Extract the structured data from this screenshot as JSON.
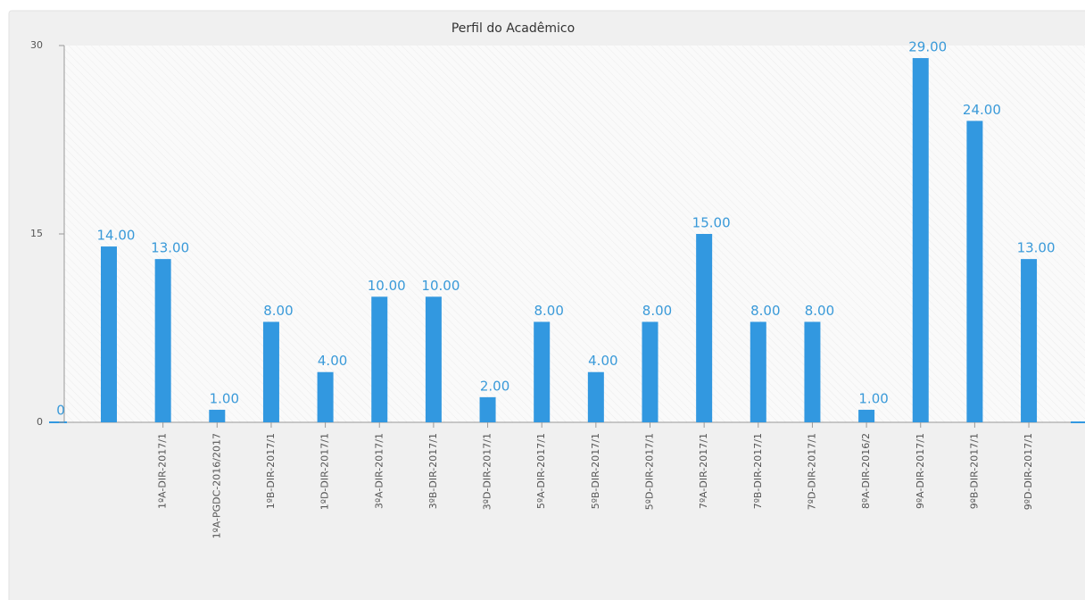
{
  "chart_data": {
    "type": "bar",
    "title": "Perfil do Acadêmico",
    "categories": [
      null,
      "1ºA-DIR-2017/1",
      "1ºA-PGDC-2016/2017",
      "1ºB-DIR-2017/1",
      "1ºD-DIR-2017/1",
      "3ºA-DIR-2017/1",
      "3ºB-DIR-2017/1",
      "3ºD-DIR-2017/1",
      "5ºA-DIR-2017/1",
      "5ºB-DIR-2017/1",
      "5ºD-DIR-2017/1",
      "7ºA-DIR-2017/1",
      "7ºB-DIR-2017/1",
      "7ºD-DIR-2017/1",
      "8ºA-DIR-2016/2",
      "9ºA-DIR-2017/1",
      "9ºB-DIR-2017/1",
      "9ºD-DIR-2017/1"
    ],
    "values": [
      14,
      13,
      1,
      8,
      4,
      10,
      10,
      2,
      8,
      4,
      8,
      15,
      8,
      8,
      1,
      29,
      24,
      13
    ],
    "value_labels": [
      "14.00",
      "13.00",
      "1.00",
      "8.00",
      "4.00",
      "10.00",
      "10.00",
      "2.00",
      "8.00",
      "4.00",
      "8.00",
      "15.00",
      "8.00",
      "8.00",
      "1.00",
      "29.00",
      "24.00",
      "13.00"
    ],
    "color": "#3298e0",
    "ylim": [
      0,
      30
    ],
    "yticks": [
      0,
      15,
      30
    ],
    "annotations": [
      {
        "text": "0"
      }
    ]
  }
}
